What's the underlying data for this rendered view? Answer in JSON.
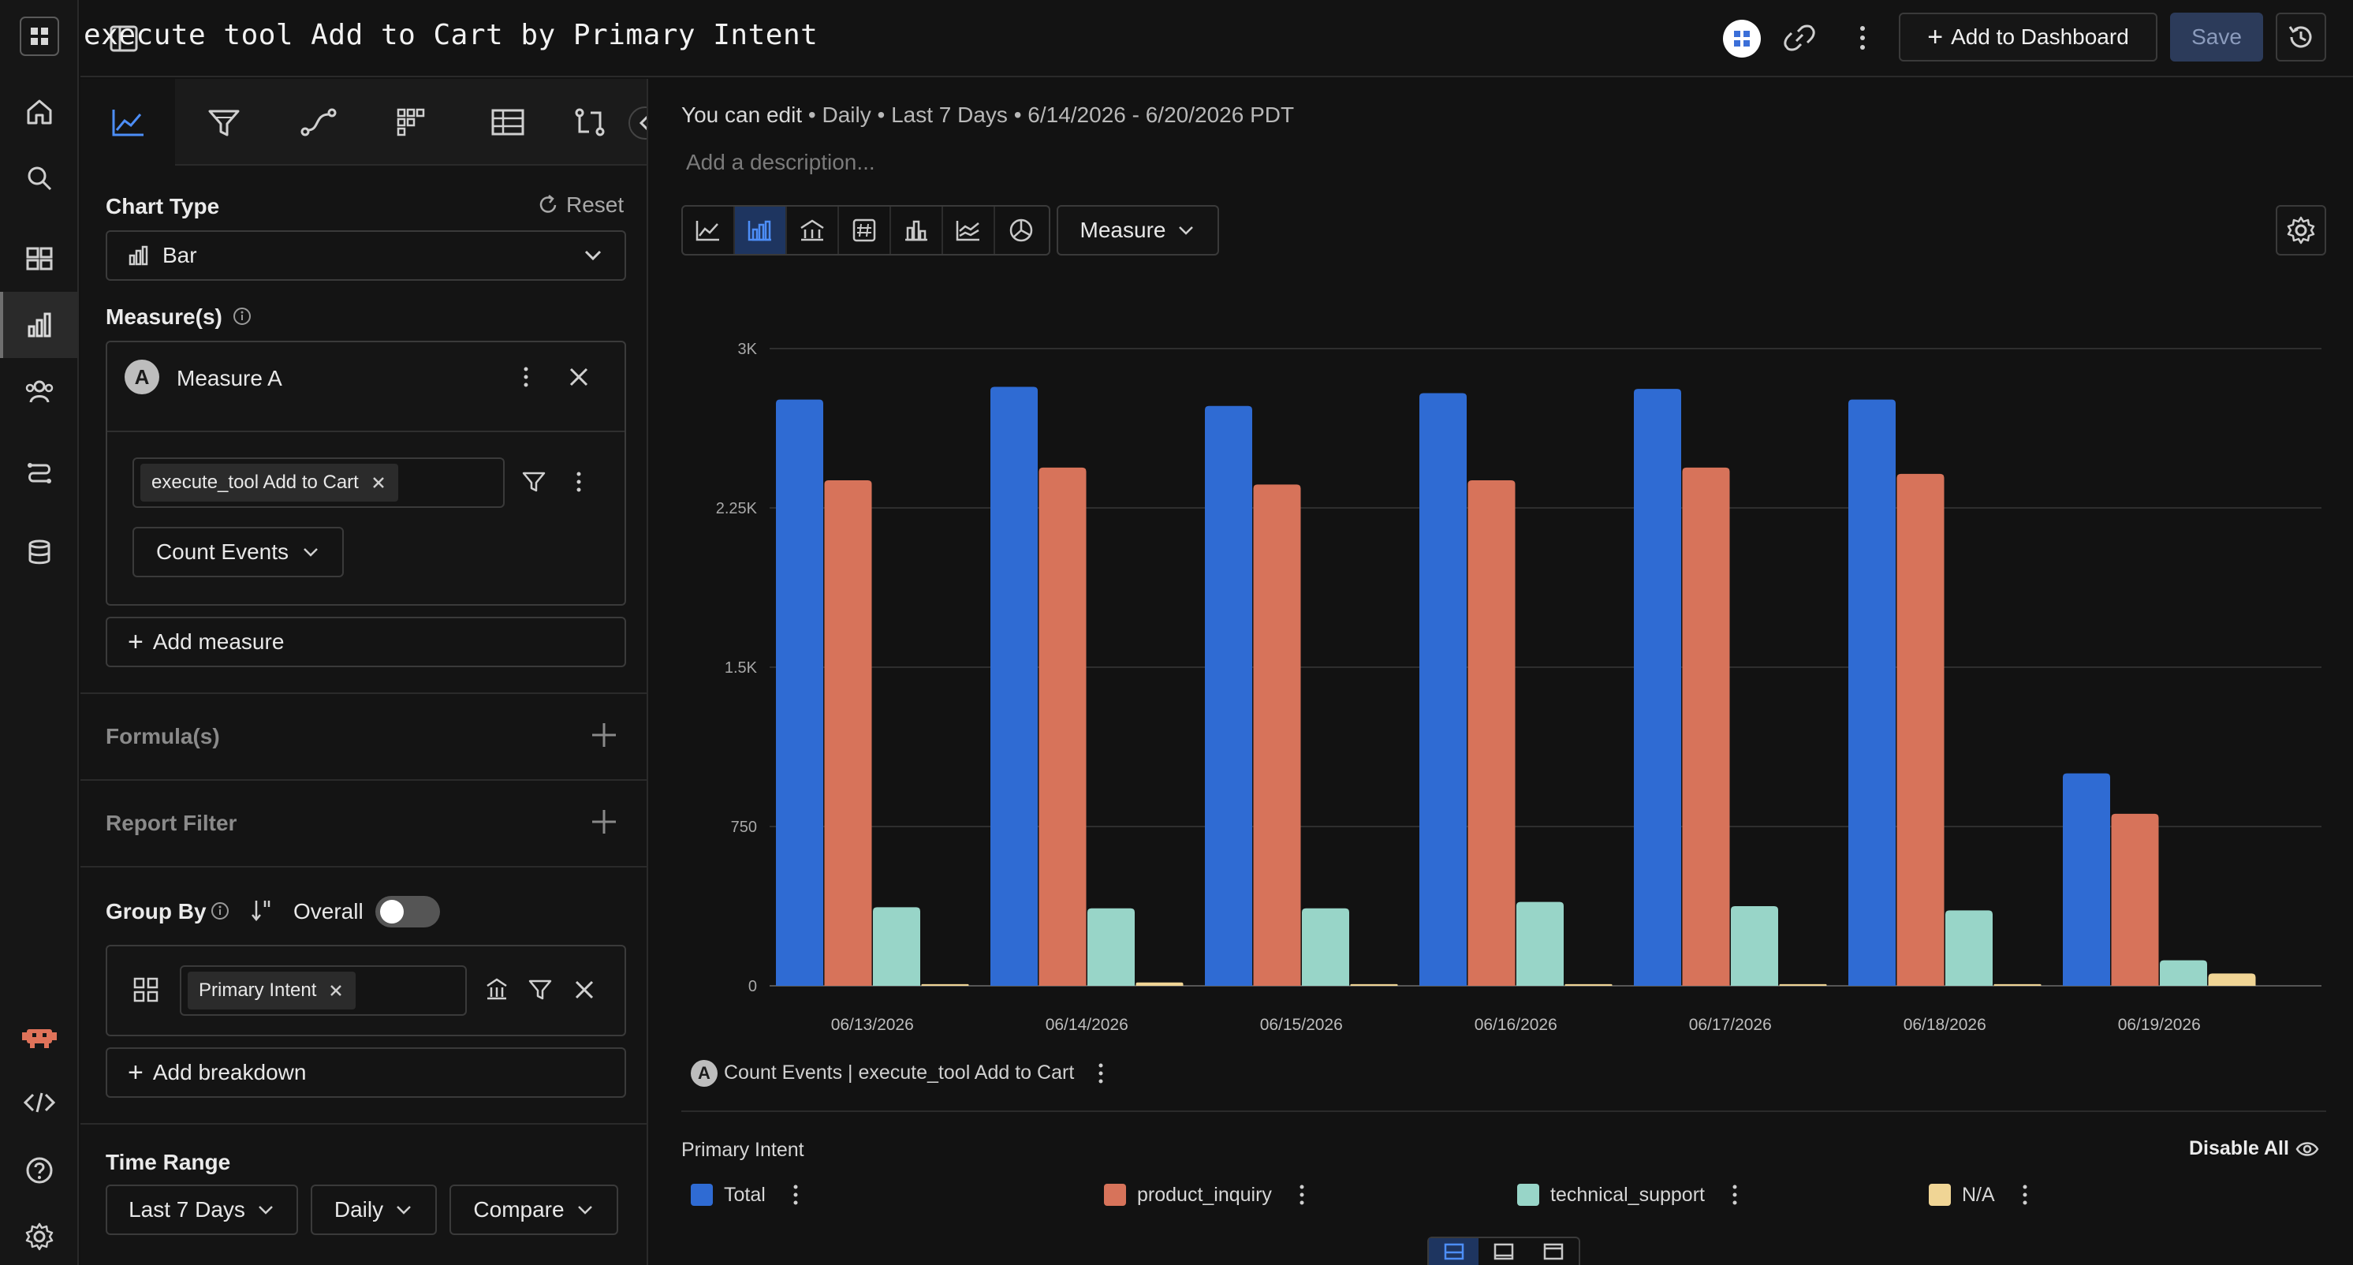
{
  "header": {
    "title": "execute tool Add to Cart by Primary Intent",
    "add_dashboard_label": "Add to Dashboard",
    "save_label": "Save"
  },
  "rail": {
    "items": [
      "grid-menu-icon",
      "home-icon",
      "search-icon",
      "dashboards-icon",
      "reports-icon",
      "users-icon",
      "flows-icon",
      "data-icon",
      "bot-icon",
      "code-icon",
      "help-icon",
      "settings-icon"
    ]
  },
  "panel": {
    "chart_type_label": "Chart Type",
    "reset_label": "Reset",
    "chart_type_value": "Bar",
    "measures_label": "Measure(s)",
    "measure_letter": "A",
    "measure_name": "Measure A",
    "event_chip": "execute_tool Add to Cart",
    "count_events_label": "Count Events",
    "add_measure_label": "Add measure",
    "formulas_label": "Formula(s)",
    "report_filter_label": "Report Filter",
    "group_by_label": "Group By",
    "overall_label": "Overall",
    "breakdown_chip": "Primary Intent",
    "add_breakdown_label": "Add breakdown",
    "time_range_label": "Time Range",
    "time_range_value": "Last 7 Days",
    "granularity_value": "Daily",
    "compare_label": "Compare"
  },
  "main": {
    "meta_edit": "You can edit",
    "meta_rest": " • Daily • Last 7 Days • 6/14/2026 - 6/20/2026 PDT",
    "description_placeholder": "Add a description...",
    "measure_dropdown": "Measure",
    "measure_legend_letter": "A",
    "measure_legend": "Count Events | execute_tool Add to Cart",
    "group_title": "Primary Intent",
    "disable_all": "Disable All"
  },
  "colors": {
    "Total": "#2f6bd3",
    "product_inquiry": "#d7735a",
    "technical_support": "#98d5c8",
    "N/A": "#f0d595"
  },
  "chart_data": {
    "type": "bar",
    "categories": [
      "06/13/2026",
      "06/14/2026",
      "06/15/2026",
      "06/16/2026",
      "06/17/2026",
      "06/18/2026",
      "06/19/2026"
    ],
    "series": [
      {
        "name": "Total",
        "values": [
          2760,
          2820,
          2730,
          2790,
          2810,
          2760,
          1000
        ]
      },
      {
        "name": "product_inquiry",
        "values": [
          2380,
          2440,
          2360,
          2380,
          2440,
          2410,
          810
        ]
      },
      {
        "name": "technical_support",
        "values": [
          370,
          365,
          365,
          395,
          375,
          355,
          120
        ]
      },
      {
        "name": "N/A",
        "values": [
          8,
          16,
          8,
          8,
          8,
          8,
          58
        ]
      }
    ],
    "ylim": [
      0,
      3000
    ],
    "yticks": [
      "0",
      "750",
      "1.5K",
      "2.25K",
      "3K"
    ],
    "ytick_values": [
      0,
      750,
      1500,
      2250,
      3000
    ],
    "grid": true
  }
}
